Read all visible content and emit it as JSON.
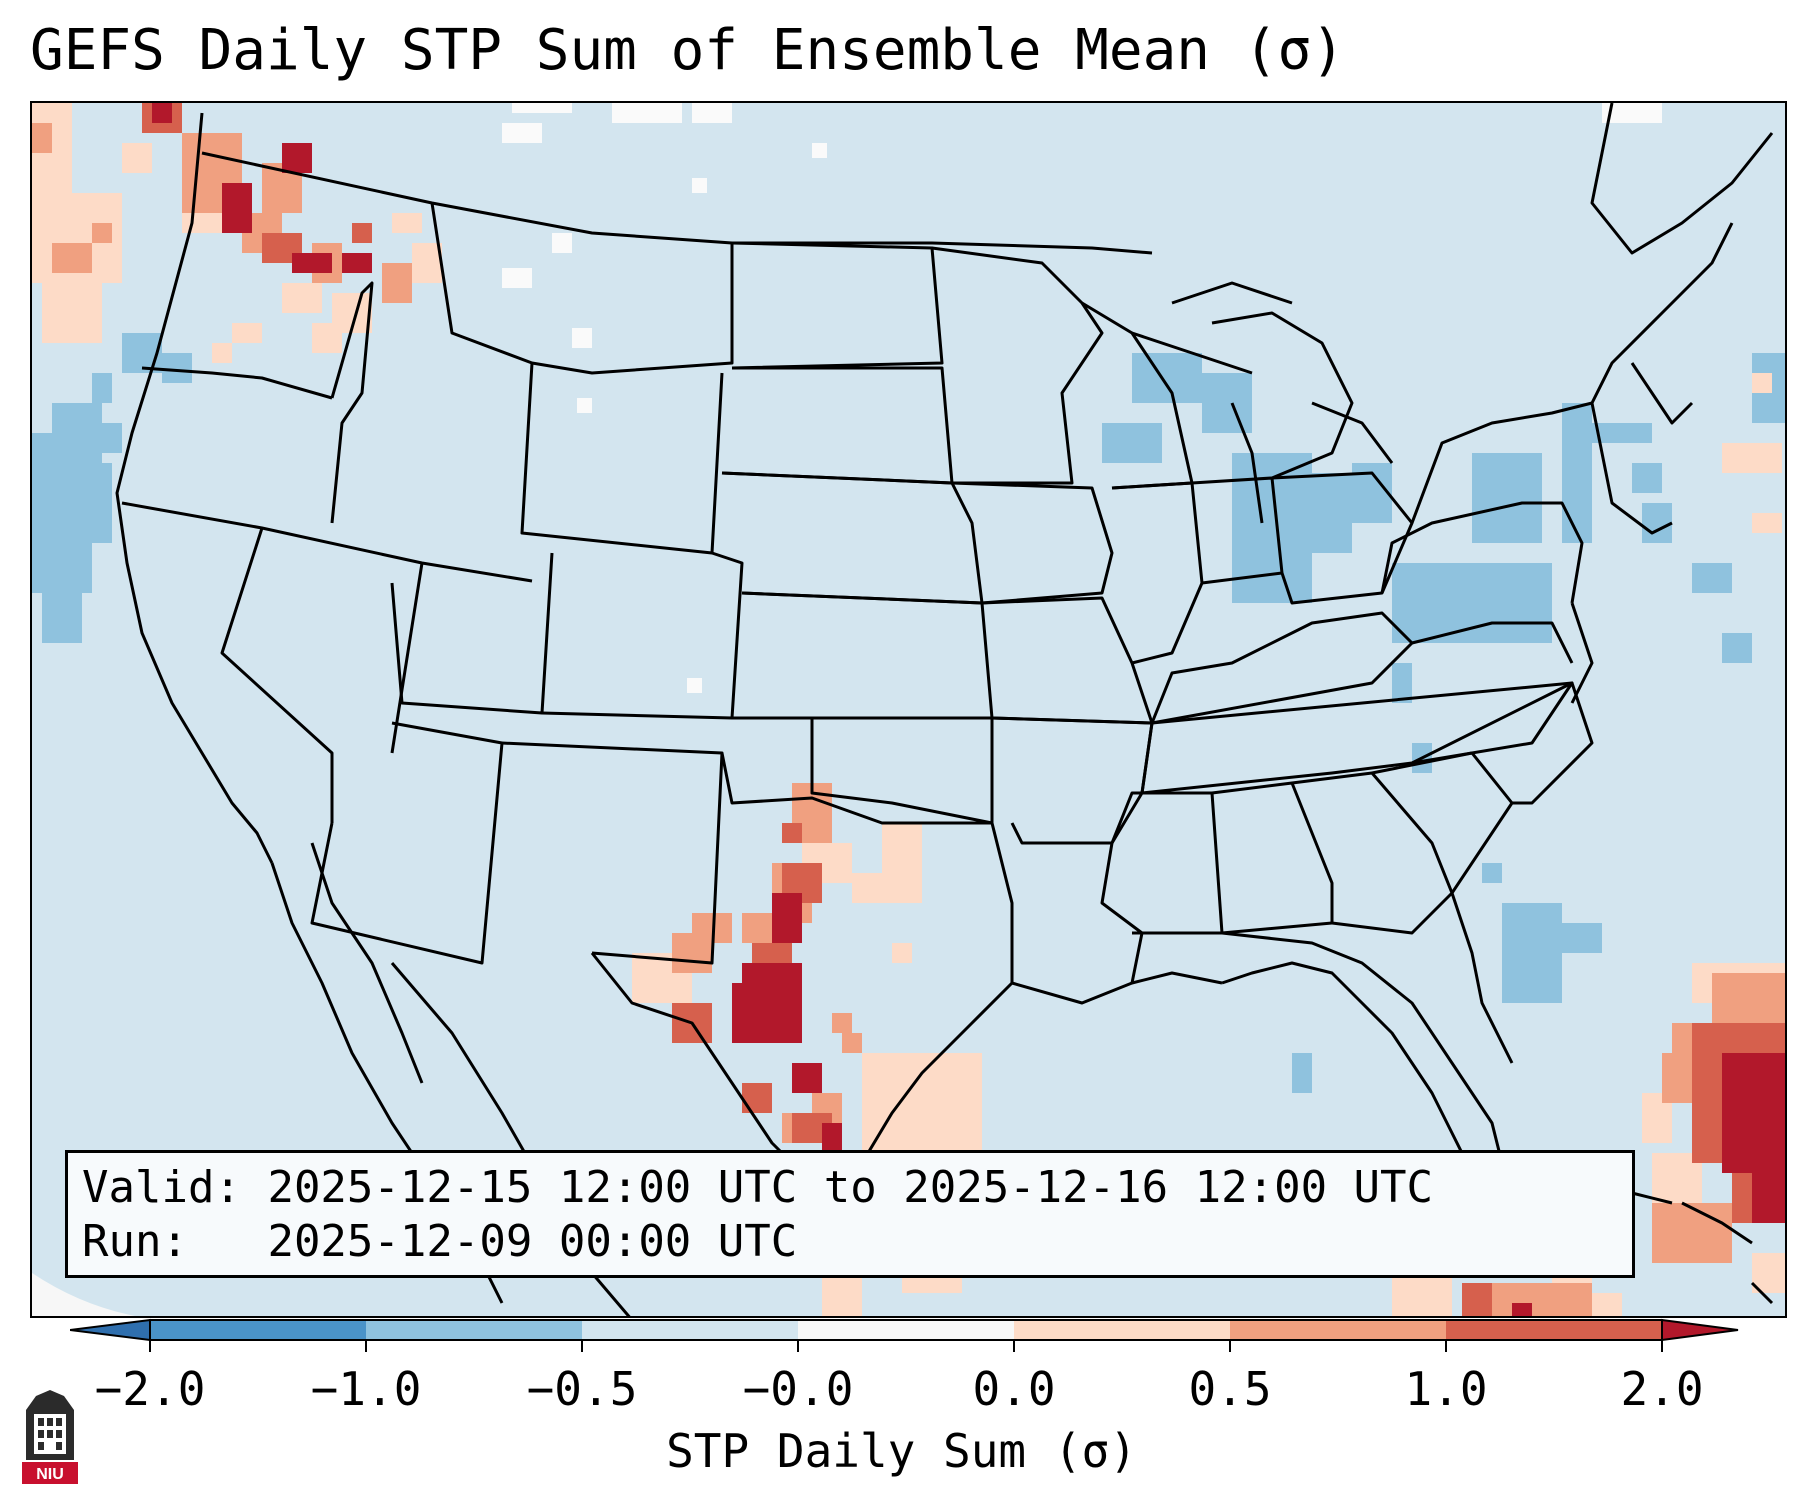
{
  "title": "GEFS Daily STP Sum of Ensemble Mean (σ)",
  "info": {
    "valid_label": "Valid:",
    "valid_value": "2025-12-15 12:00 UTC to 2025-12-16 12:00 UTC",
    "run_label": "Run:",
    "run_value": "2025-12-09 00:00 UTC"
  },
  "colorbar": {
    "label": "STP Daily Sum (σ)",
    "ticks": [
      "−2.0",
      "−1.0",
      "−0.5",
      "−0.0",
      "0.0",
      "0.5",
      "1.0",
      "2.0"
    ],
    "colors": [
      "#4a93c8",
      "#8fc2de",
      "#d3e5ef",
      "#f7f7f7",
      "#fddbc7",
      "#f0a080",
      "#d6604d",
      "#b2182b"
    ],
    "extend": "both"
  },
  "map": {
    "background_color": "#d3e5ef",
    "region": "Continental United States"
  },
  "logo": {
    "text": "NIU"
  }
}
